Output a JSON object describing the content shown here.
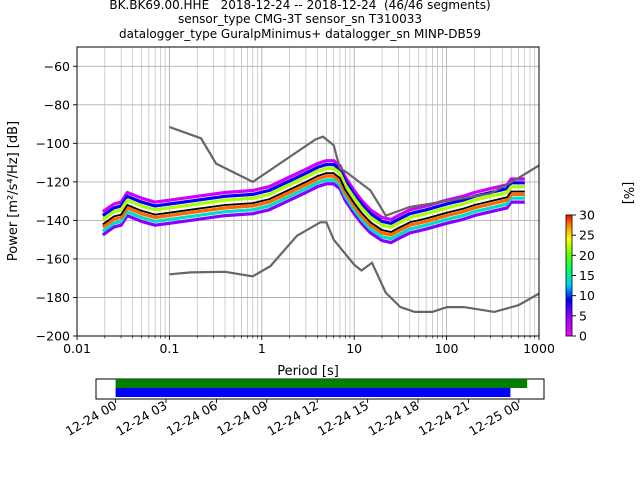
{
  "chart_data": {
    "type": "heatmap",
    "title_lines": [
      "BK.BK69.00.HHE   2018-12-24 -- 2018-12-24  (46/46 segments)",
      "sensor_type CMG-3T sensor_sn T310033",
      "datalogger_type GuralpMinimus+ datalogger_sn MINP-DB59"
    ],
    "xlabel": "Period [s]",
    "ylabel": "Power [m²/s⁴/Hz] [dB]",
    "xscale": "log",
    "xlim": [
      0.01,
      1000
    ],
    "ylim": [
      -200,
      -50
    ],
    "x_ticks": [
      {
        "value": 0.01,
        "label": "0.01"
      },
      {
        "value": 0.1,
        "label": "0.1"
      },
      {
        "value": 1,
        "label": "1"
      },
      {
        "value": 10,
        "label": "10"
      },
      {
        "value": 100,
        "label": "100"
      },
      {
        "value": 1000,
        "label": "1000"
      }
    ],
    "y_ticks": [
      {
        "value": -60,
        "label": "−60"
      },
      {
        "value": -80,
        "label": "−80"
      },
      {
        "value": -100,
        "label": "−100"
      },
      {
        "value": -120,
        "label": "−120"
      },
      {
        "value": -140,
        "label": "−140"
      },
      {
        "value": -160,
        "label": "−160"
      },
      {
        "value": -180,
        "label": "−180"
      },
      {
        "value": -200,
        "label": "−200"
      }
    ],
    "grid": true,
    "noise_models": [
      {
        "points": [
          [
            0.1,
            -91.5
          ],
          [
            0.22,
            -97.4
          ],
          [
            0.32,
            -110.5
          ],
          [
            0.8,
            -120
          ],
          [
            3.8,
            -98
          ],
          [
            4.6,
            -96.5
          ],
          [
            6.0,
            -101
          ],
          [
            7.0,
            -113
          ],
          [
            8.0,
            -114.5
          ],
          [
            15,
            -124.5
          ],
          [
            22,
            -137.5
          ],
          [
            40,
            -133
          ],
          [
            100,
            -130
          ],
          [
            300,
            -126
          ],
          [
            600,
            -118
          ],
          [
            1000,
            -111.5
          ]
        ]
      },
      {
        "points": [
          [
            0.1,
            -168
          ],
          [
            0.17,
            -167
          ],
          [
            0.4,
            -166.7
          ],
          [
            0.8,
            -169
          ],
          [
            1.24,
            -163.7
          ],
          [
            2.4,
            -148
          ],
          [
            4.3,
            -141
          ],
          [
            5.0,
            -141
          ],
          [
            6.0,
            -150
          ],
          [
            10,
            -163
          ],
          [
            12,
            -166
          ],
          [
            15.6,
            -162
          ],
          [
            21.9,
            -177.5
          ],
          [
            31.6,
            -185
          ],
          [
            45,
            -187.5
          ],
          [
            70,
            -187.5
          ],
          [
            101,
            -185
          ],
          [
            154,
            -185
          ],
          [
            328,
            -187.5
          ],
          [
            600,
            -184
          ],
          [
            1000,
            -178
          ]
        ]
      }
    ],
    "median": [
      [
        0.019,
        -142
      ],
      [
        0.025,
        -138
      ],
      [
        0.03,
        -137
      ],
      [
        0.035,
        -132
      ],
      [
        0.05,
        -135
      ],
      [
        0.07,
        -137
      ],
      [
        0.1,
        -136
      ],
      [
        0.2,
        -134
      ],
      [
        0.4,
        -132
      ],
      [
        0.8,
        -131
      ],
      [
        1.2,
        -129
      ],
      [
        2,
        -124
      ],
      [
        3,
        -120
      ],
      [
        4,
        -117
      ],
      [
        5,
        -115.5
      ],
      [
        6,
        -115.5
      ],
      [
        7,
        -118
      ],
      [
        8,
        -124
      ],
      [
        10,
        -131
      ],
      [
        12,
        -136
      ],
      [
        15,
        -141
      ],
      [
        20,
        -145
      ],
      [
        25,
        -146
      ],
      [
        30,
        -144
      ],
      [
        40,
        -141
      ],
      [
        60,
        -139
      ],
      [
        100,
        -136
      ],
      [
        150,
        -134
      ],
      [
        200,
        -132
      ],
      [
        300,
        -130
      ],
      [
        450,
        -128
      ],
      [
        500,
        -125
      ],
      [
        700,
        -125
      ]
    ],
    "density_rows": [
      {
        "x": [
          0.019,
          0.025,
          0.03,
          0.035,
          0.05,
          0.07,
          0.1,
          0.2,
          0.4,
          0.8,
          1.2,
          2,
          3,
          4,
          5,
          6,
          7,
          8,
          10,
          12,
          15,
          20,
          25,
          30,
          40,
          60,
          100,
          150,
          200,
          300,
          450,
          500,
          700
        ],
        "y": [
          -143.5,
          -139.5,
          -138.5,
          -133.5,
          -136.5,
          -138.5,
          -137.5,
          -135.5,
          -133.5,
          -132.5,
          -130.5,
          -125.5,
          -121.5,
          -118.5,
          -117,
          -117,
          -119.5,
          -125.5,
          -132.5,
          -137.5,
          -142.5,
          -146.5,
          -147.5,
          -145.5,
          -142.5,
          -140.5,
          -137.5,
          -135.5,
          -133.5,
          -131.5,
          -129.5,
          -126.5,
          -126.5
        ],
        "percent": 28
      },
      {
        "x": [
          0.019,
          0.025,
          0.03,
          0.035,
          0.05,
          0.07,
          0.1,
          0.2,
          0.4,
          0.8,
          1.2,
          2,
          3,
          4,
          5,
          6,
          7,
          8,
          10,
          12,
          15,
          20,
          25,
          30,
          40,
          60,
          100,
          150,
          200,
          300,
          450,
          500,
          700
        ],
        "y": [
          -139.5,
          -135.5,
          -134.5,
          -129.5,
          -132.5,
          -134.5,
          -133.5,
          -131.5,
          -129.5,
          -128.5,
          -126.5,
          -121.5,
          -117.5,
          -114.5,
          -113,
          -113,
          -115.5,
          -121.5,
          -128.5,
          -133.5,
          -138.5,
          -142.5,
          -143.5,
          -141.5,
          -138.5,
          -136.5,
          -133.5,
          -131.5,
          -129.5,
          -127.5,
          -125.5,
          -122.5,
          -122.5
        ],
        "percent": 22
      },
      {
        "x": [
          0.019,
          0.025,
          0.03,
          0.035,
          0.05,
          0.07,
          0.1,
          0.2,
          0.4,
          0.8,
          1.2,
          2,
          3,
          4,
          5,
          6,
          7,
          8,
          10,
          12,
          15,
          20,
          25,
          30,
          40,
          60,
          100,
          150,
          200,
          300,
          450,
          500,
          700
        ],
        "y": [
          -145.5,
          -141.5,
          -140.5,
          -135.5,
          -138.5,
          -140.5,
          -139.5,
          -137.5,
          -135.5,
          -134.5,
          -132.5,
          -127.5,
          -123.5,
          -120.5,
          -119,
          -119,
          -121.5,
          -127.5,
          -134.5,
          -139.5,
          -144.5,
          -148.5,
          -149.5,
          -147.5,
          -144.5,
          -142.5,
          -139.5,
          -137.5,
          -135.5,
          -133.5,
          -131.5,
          -128.5,
          -128.5
        ],
        "percent": 14
      },
      {
        "x": [
          0.019,
          0.025,
          0.03,
          0.035,
          0.05,
          0.07,
          0.1,
          0.2,
          0.4,
          0.8,
          1.2,
          2,
          3,
          4,
          5,
          6,
          7,
          8,
          10,
          12,
          15,
          20,
          25,
          30,
          40,
          60,
          100,
          150,
          200,
          300,
          450,
          500,
          700
        ],
        "y": [
          -137.5,
          -133.5,
          -132.5,
          -127.5,
          -130.5,
          -132.5,
          -131.5,
          -129.5,
          -127.5,
          -126.5,
          -124.5,
          -119.5,
          -115.5,
          -112.5,
          -111,
          -111,
          -113.5,
          -119.5,
          -126.5,
          -131.5,
          -136.5,
          -140.5,
          -141.5,
          -139.5,
          -136.5,
          -134.5,
          -131.5,
          -129.5,
          -127.5,
          -125.5,
          -123.5,
          -120.5,
          -120.5
        ],
        "percent": 9
      },
      {
        "x": [
          0.019,
          0.025,
          0.03,
          0.035,
          0.05,
          0.07,
          0.1,
          0.2,
          0.4,
          0.8,
          1.2,
          2,
          3,
          4,
          5,
          6,
          7,
          8,
          10,
          12,
          15,
          20,
          25,
          30,
          40,
          60,
          100,
          150,
          200,
          300,
          450,
          500,
          700
        ],
        "y": [
          -147.5,
          -143.5,
          -142.5,
          -137.5,
          -140.5,
          -142.5,
          -141.5,
          -139.5,
          -137.5,
          -136.5,
          -134.5,
          -129.5,
          -125.5,
          -122.5,
          -121,
          -121,
          -123.5,
          -129.5,
          -136.5,
          -141.5,
          -146.5,
          -150.5,
          -151.5,
          -149.5,
          -146.5,
          -144.5,
          -141.5,
          -139.5,
          -137.5,
          -135.5,
          -133.5,
          -130.5,
          -130.5
        ],
        "percent": 5
      },
      {
        "x": [
          0.019,
          0.025,
          0.03,
          0.035,
          0.05,
          0.07,
          0.1,
          0.2,
          0.4,
          0.8,
          1.2,
          2,
          3,
          4,
          5,
          6,
          7,
          8,
          10,
          12,
          15,
          20,
          25,
          30,
          40,
          60,
          100,
          150,
          200,
          300,
          450,
          500,
          700
        ],
        "y": [
          -135.5,
          -131.5,
          -130.5,
          -125.5,
          -128.5,
          -130.5,
          -129.5,
          -127.5,
          -125.5,
          -124.5,
          -122.5,
          -117.5,
          -113.5,
          -110.5,
          -109,
          -109,
          -111.5,
          -117.5,
          -124.5,
          -129.5,
          -134.5,
          -138.5,
          -139.5,
          -137.5,
          -134.5,
          -132.5,
          -129.5,
          -127.5,
          -125.5,
          -123.5,
          -121.5,
          -118.5,
          -118.5
        ],
        "percent": 2
      }
    ],
    "colorbar": {
      "label": "[%]",
      "range": [
        0,
        30
      ],
      "ticks": [
        {
          "value": 0,
          "label": "0"
        },
        {
          "value": 5,
          "label": "5"
        },
        {
          "value": 10,
          "label": "10"
        },
        {
          "value": 15,
          "label": "15"
        },
        {
          "value": 20,
          "label": "20"
        },
        {
          "value": 25,
          "label": "25"
        },
        {
          "value": 30,
          "label": "30"
        }
      ]
    },
    "data_coverage": {
      "xlim": [
        "2018-12-23 22:50",
        "2018-12-25 01:30"
      ],
      "ticks": [
        {
          "value": "2018-12-24 00:00",
          "label": "12-24 00"
        },
        {
          "value": "2018-12-24 03:00",
          "label": "12-24 03"
        },
        {
          "value": "2018-12-24 06:00",
          "label": "12-24 06"
        },
        {
          "value": "2018-12-24 09:00",
          "label": "12-24 09"
        },
        {
          "value": "2018-12-24 12:00",
          "label": "12-24 12"
        },
        {
          "value": "2018-12-24 15:00",
          "label": "12-24 15"
        },
        {
          "value": "2018-12-24 18:00",
          "label": "12-24 18"
        },
        {
          "value": "2018-12-24 21:00",
          "label": "12-24 21"
        },
        {
          "value": "2018-12-25 00:00",
          "label": "12-25 00"
        }
      ],
      "bars": [
        {
          "start": "2018-12-24 00:00",
          "end": "2018-12-25 00:30",
          "color": "#008000"
        },
        {
          "start": "2018-12-24 00:00",
          "end": "2018-12-24 23:30",
          "color": "#0000ff"
        }
      ]
    }
  }
}
